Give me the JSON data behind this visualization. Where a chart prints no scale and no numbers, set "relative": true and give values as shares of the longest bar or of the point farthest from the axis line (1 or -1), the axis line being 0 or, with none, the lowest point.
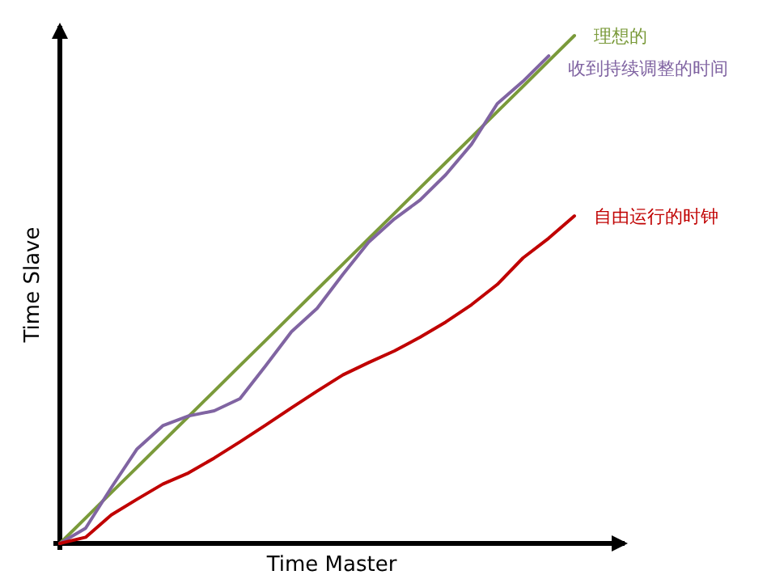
{
  "chart_data": {
    "type": "line",
    "relative": true,
    "xlabel": "Time Master",
    "ylabel": "Time Slave",
    "categories": [
      null,
      null,
      null,
      null,
      null,
      null,
      null,
      null,
      null,
      null,
      null,
      null,
      null,
      null,
      null,
      null,
      null,
      null,
      null,
      null,
      null
    ],
    "series": [
      {
        "name": "理想的",
        "color": "#7a9a3a",
        "values": [
          0,
          0.05,
          0.1,
          0.15,
          0.2,
          0.25,
          0.3,
          0.35,
          0.4,
          0.45,
          0.5,
          0.55,
          0.6,
          0.65,
          0.7,
          0.75,
          0.8,
          0.85,
          0.9,
          0.95,
          1
        ]
      },
      {
        "name": "收到持续调整的时间",
        "color": "#8064a2",
        "values": [
          0,
          0.03,
          0.11,
          0.186,
          0.232,
          0.251,
          0.261,
          0.285,
          0.35,
          0.417,
          0.463,
          0.53,
          0.593,
          0.639,
          0.676,
          0.726,
          0.786,
          0.866,
          0.91,
          0.96,
          null
        ]
      },
      {
        "name": "自由运行的时钟",
        "color": "#c00000",
        "values": [
          0,
          0.012,
          0.056,
          0.087,
          0.117,
          0.139,
          0.168,
          0.2,
          0.233,
          0.267,
          0.3,
          0.332,
          0.356,
          0.379,
          0.406,
          0.436,
          0.47,
          0.51,
          0.562,
          0.601,
          0.645
        ]
      }
    ]
  }
}
